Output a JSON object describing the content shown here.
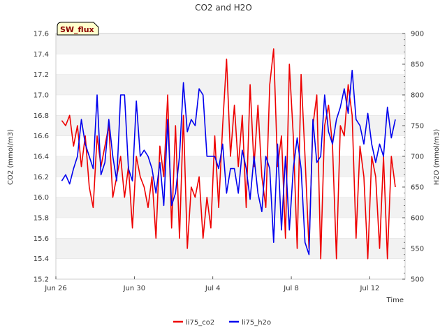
{
  "chart_data": {
    "type": "line",
    "title": "CO2 and H2O",
    "badge": "SW_flux",
    "xlabel": "Time",
    "ylabel_left": "CO2 (mmol/m3)",
    "ylabel_right": "H2O (mmol/m3)",
    "x_ticks": [
      "Jun 26",
      "Jun 30",
      "Jul 4",
      "Jul 8",
      "Jul 12"
    ],
    "x_tick_days": [
      0,
      4,
      8,
      12,
      16
    ],
    "x_range_days": [
      0,
      17.8
    ],
    "ylim_left": [
      15.2,
      17.6
    ],
    "ylim_right": [
      500,
      900
    ],
    "y_ticks_left": [
      "15.2",
      "15.4",
      "15.6",
      "15.8",
      "16.0",
      "16.2",
      "16.4",
      "16.6",
      "16.8",
      "17.0",
      "17.2",
      "17.4",
      "17.6"
    ],
    "y_ticks_right": [
      "500",
      "550",
      "600",
      "650",
      "700",
      "750",
      "800",
      "850",
      "900"
    ],
    "grid": "horizontal bands",
    "legend_position": "bottom-center",
    "series": [
      {
        "name": "li75_co2",
        "color": "#ee0000",
        "axis": "left",
        "x_days": [
          0.3,
          0.5,
          0.7,
          0.9,
          1.1,
          1.3,
          1.5,
          1.7,
          1.9,
          2.1,
          2.3,
          2.5,
          2.7,
          2.9,
          3.1,
          3.3,
          3.5,
          3.7,
          3.9,
          4.1,
          4.3,
          4.5,
          4.7,
          4.9,
          5.1,
          5.3,
          5.5,
          5.7,
          5.9,
          6.1,
          6.3,
          6.5,
          6.7,
          6.9,
          7.1,
          7.3,
          7.5,
          7.7,
          7.9,
          8.1,
          8.3,
          8.5,
          8.7,
          8.9,
          9.1,
          9.3,
          9.5,
          9.7,
          9.9,
          10.1,
          10.3,
          10.5,
          10.7,
          10.9,
          11.1,
          11.3,
          11.5,
          11.7,
          11.9,
          12.1,
          12.3,
          12.5,
          12.7,
          12.9,
          13.1,
          13.3,
          13.5,
          13.7,
          13.9,
          14.1,
          14.3,
          14.5,
          14.7,
          14.9,
          15.1,
          15.3,
          15.5,
          15.7,
          15.9,
          16.1,
          16.3,
          16.5,
          16.7,
          16.9,
          17.1,
          17.3
        ],
        "values": [
          16.75,
          16.7,
          16.8,
          16.5,
          16.7,
          16.3,
          16.6,
          16.1,
          15.9,
          16.6,
          16.3,
          16.5,
          16.7,
          16.0,
          16.2,
          16.4,
          16.0,
          16.3,
          15.7,
          16.4,
          16.2,
          16.1,
          15.9,
          16.2,
          15.6,
          16.5,
          16.2,
          17.0,
          15.7,
          16.7,
          15.6,
          16.8,
          15.5,
          16.1,
          16.0,
          16.2,
          15.6,
          16.0,
          15.7,
          16.6,
          15.9,
          16.7,
          17.35,
          16.4,
          16.9,
          16.3,
          16.8,
          15.9,
          17.1,
          16.3,
          16.9,
          16.2,
          15.9,
          17.1,
          17.45,
          16.3,
          16.6,
          15.6,
          17.3,
          16.6,
          15.5,
          17.2,
          16.4,
          15.5,
          16.7,
          17.0,
          15.4,
          16.7,
          16.9,
          16.5,
          15.4,
          16.7,
          16.6,
          17.1,
          16.8,
          15.6,
          16.5,
          16.2,
          15.4,
          16.4,
          16.2,
          15.5,
          16.4,
          15.4,
          16.4,
          16.1
        ],
        "description_sample": "sampled approximately every 0.2 days"
      },
      {
        "name": "li75_h2o",
        "color": "#0000ee",
        "axis": "right",
        "x_days": [
          0.3,
          0.5,
          0.7,
          0.9,
          1.1,
          1.3,
          1.5,
          1.7,
          1.9,
          2.1,
          2.3,
          2.5,
          2.7,
          2.9,
          3.1,
          3.3,
          3.5,
          3.7,
          3.9,
          4.1,
          4.3,
          4.5,
          4.7,
          4.9,
          5.1,
          5.3,
          5.5,
          5.7,
          5.9,
          6.1,
          6.3,
          6.5,
          6.7,
          6.9,
          7.1,
          7.3,
          7.5,
          7.7,
          7.9,
          8.1,
          8.3,
          8.5,
          8.7,
          8.9,
          9.1,
          9.3,
          9.5,
          9.7,
          9.9,
          10.1,
          10.3,
          10.5,
          10.7,
          10.9,
          11.1,
          11.3,
          11.5,
          11.7,
          11.9,
          12.1,
          12.3,
          12.5,
          12.7,
          12.9,
          13.1,
          13.3,
          13.5,
          13.7,
          13.9,
          14.1,
          14.3,
          14.5,
          14.7,
          14.9,
          15.1,
          15.3,
          15.5,
          15.7,
          15.9,
          16.1,
          16.3,
          16.5,
          16.7,
          16.9,
          17.1,
          17.3
        ],
        "values": [
          660,
          670,
          655,
          680,
          700,
          760,
          720,
          700,
          680,
          800,
          670,
          690,
          760,
          700,
          660,
          800,
          800,
          680,
          660,
          790,
          700,
          710,
          700,
          680,
          640,
          690,
          620,
          760,
          620,
          640,
          700,
          820,
          740,
          760,
          750,
          810,
          800,
          700,
          700,
          700,
          680,
          720,
          640,
          680,
          680,
          640,
          710,
          680,
          630,
          700,
          640,
          610,
          700,
          680,
          560,
          720,
          580,
          700,
          580,
          680,
          730,
          680,
          560,
          540,
          760,
          690,
          700,
          800,
          740,
          720,
          760,
          780,
          810,
          770,
          840,
          760,
          750,
          720,
          770,
          720,
          690,
          720,
          700,
          780,
          730,
          760
        ]
      }
    ]
  }
}
